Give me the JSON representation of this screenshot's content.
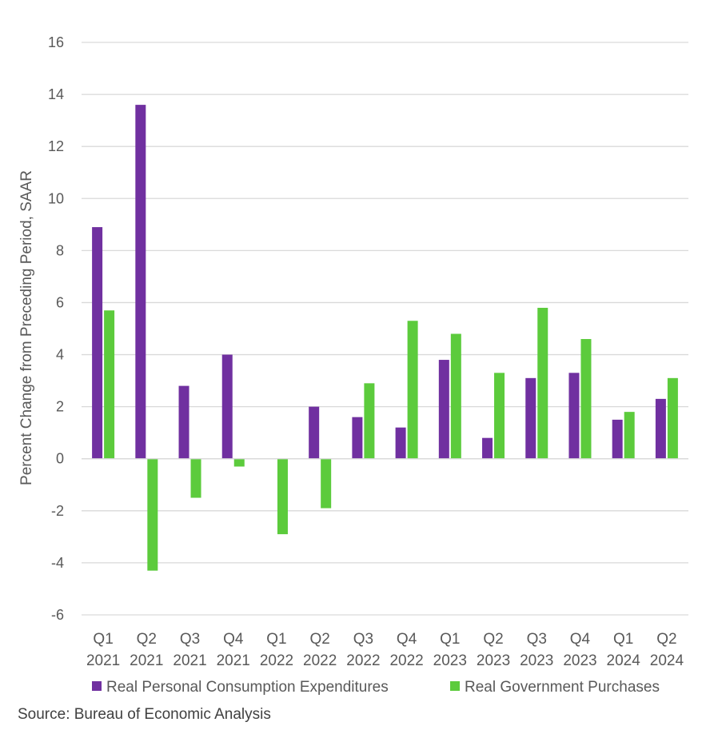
{
  "chart_data": {
    "type": "bar",
    "categories": [
      [
        "Q1",
        "2021"
      ],
      [
        "Q2",
        "2021"
      ],
      [
        "Q3",
        "2021"
      ],
      [
        "Q4",
        "2021"
      ],
      [
        "Q1",
        "2022"
      ],
      [
        "Q2",
        "2022"
      ],
      [
        "Q3",
        "2022"
      ],
      [
        "Q4",
        "2022"
      ],
      [
        "Q1",
        "2023"
      ],
      [
        "Q2",
        "2023"
      ],
      [
        "Q3",
        "2023"
      ],
      [
        "Q4",
        "2023"
      ],
      [
        "Q1",
        "2024"
      ],
      [
        "Q2",
        "2024"
      ]
    ],
    "series": [
      {
        "name": "Real Personal Consumption Expenditures",
        "color": "#7030A0",
        "values": [
          8.9,
          13.6,
          2.8,
          4.0,
          0.0,
          2.0,
          1.6,
          1.2,
          3.8,
          0.8,
          3.1,
          3.3,
          1.5,
          2.3
        ]
      },
      {
        "name": "Real Government Purchases",
        "color": "#5CCB3C",
        "values": [
          5.7,
          -4.3,
          -1.5,
          -0.3,
          -2.9,
          -1.9,
          2.9,
          5.3,
          4.8,
          3.3,
          5.8,
          4.6,
          1.8,
          3.1
        ]
      }
    ],
    "ylabel": "Percent Change from Preceding Period, SAAR",
    "xlabel": "",
    "ylim": [
      -6,
      16
    ],
    "yticks": [
      16,
      14,
      12,
      10,
      8,
      6,
      4,
      2,
      0,
      -2,
      -4,
      -6
    ],
    "grid": true,
    "legend_position": "bottom",
    "gridline_color": "#D9D9D9"
  },
  "source": "Source: Bureau of Economic Analysis"
}
